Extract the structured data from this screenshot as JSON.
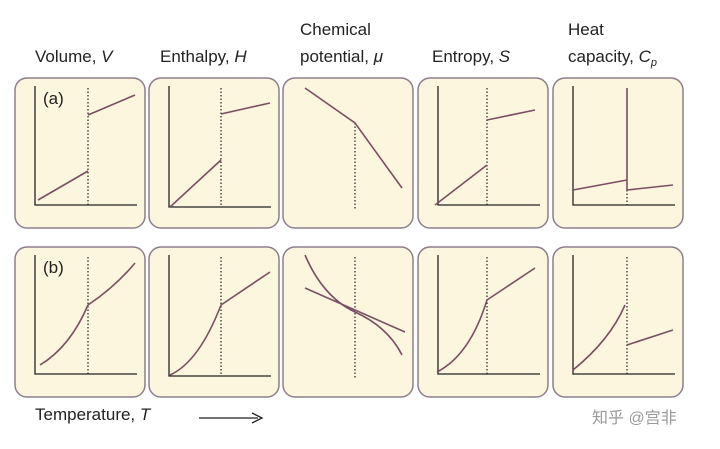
{
  "columns": [
    {
      "lines": [
        "Volume,"
      ],
      "symbol": "V"
    },
    {
      "lines": [
        "Enthalpy,"
      ],
      "symbol": "H"
    },
    {
      "lines": [
        "Chemical",
        "potential,"
      ],
      "symbol": "μ"
    },
    {
      "lines": [
        "Entropy,"
      ],
      "symbol": "S"
    },
    {
      "lines": [
        "Heat",
        "capacity,"
      ],
      "symbol": "C",
      "subscript": "p"
    }
  ],
  "rows": [
    {
      "label": "(a)"
    },
    {
      "label": "(b)"
    }
  ],
  "x_axis": {
    "label": "Temperature,",
    "symbol": "T"
  },
  "watermark": "知乎 @宫非"
}
